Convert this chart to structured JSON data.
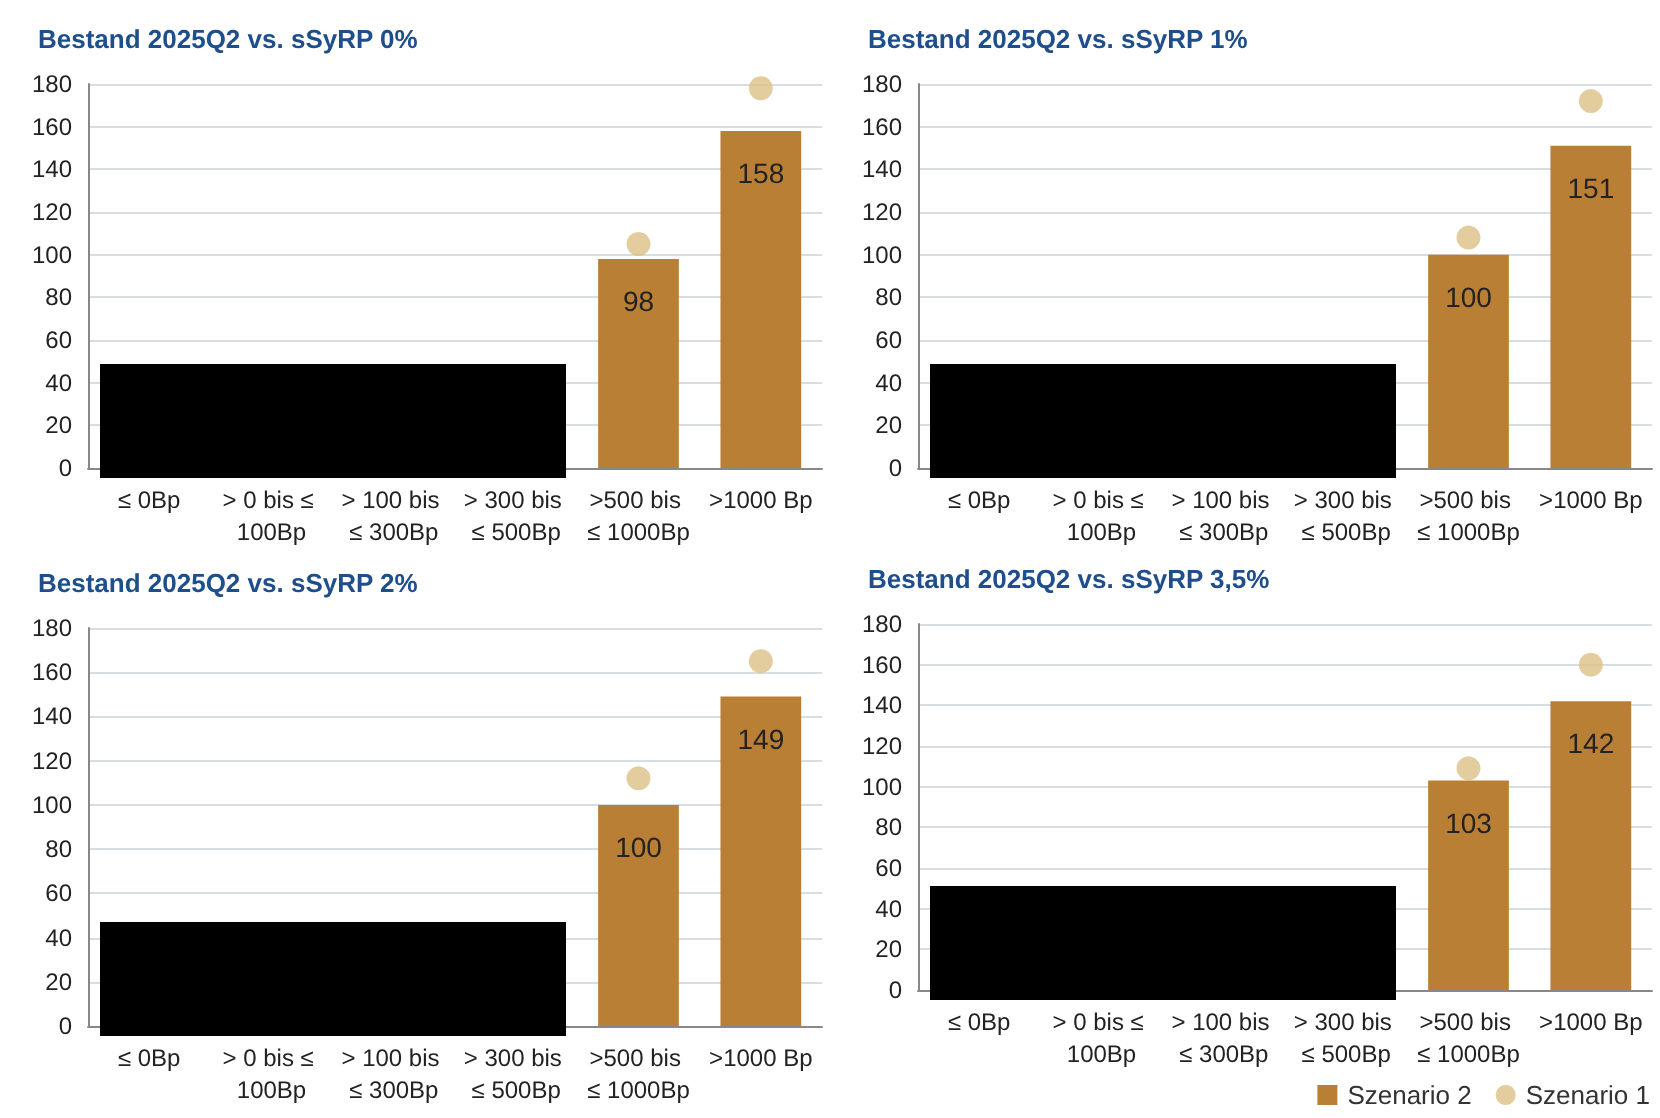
{
  "chart_data": [
    {
      "type": "bar",
      "title": "Bestand 2025Q2 vs. sSyRP 0%",
      "categories": [
        "≤ 0Bp",
        "> 0 bis ≤ 100Bp",
        "> 100 bis ≤ 300Bp",
        "> 300 bis ≤ 500Bp",
        ">500 bis ≤ 1000Bp",
        ">1000 Bp"
      ],
      "ylim": [
        0,
        180
      ],
      "yticks": [
        0,
        20,
        40,
        60,
        80,
        100,
        120,
        140,
        160,
        180
      ],
      "grid": "y",
      "marker": "circle",
      "series": [
        {
          "type": "bar",
          "color": "#b97f35",
          "values": [
            null,
            null,
            null,
            null,
            98,
            158
          ],
          "value_labels": [
            null,
            null,
            null,
            null,
            "98",
            "158"
          ]
        },
        {
          "type": "scatter",
          "color": "#dcc086",
          "values": [
            null,
            null,
            null,
            null,
            105,
            178
          ]
        }
      ]
    },
    {
      "type": "bar",
      "title": "Bestand 2025Q2 vs. sSyRP 1%",
      "categories": [
        "≤ 0Bp",
        "> 0 bis ≤ 100Bp",
        "> 100 bis ≤ 300Bp",
        "> 300 bis ≤ 500Bp",
        ">500 bis ≤ 1000Bp",
        ">1000 Bp"
      ],
      "ylim": [
        0,
        180
      ],
      "yticks": [
        0,
        20,
        40,
        60,
        80,
        100,
        120,
        140,
        160,
        180
      ],
      "grid": "y",
      "marker": "circle",
      "series": [
        {
          "type": "bar",
          "color": "#b97f35",
          "values": [
            null,
            null,
            null,
            null,
            100,
            151
          ],
          "value_labels": [
            null,
            null,
            null,
            null,
            "100",
            "151"
          ]
        },
        {
          "type": "scatter",
          "color": "#dcc086",
          "values": [
            null,
            null,
            null,
            null,
            108,
            172
          ]
        }
      ]
    },
    {
      "type": "bar",
      "title": "Bestand 2025Q2 vs. sSyRP 2%",
      "categories": [
        "≤ 0Bp",
        "> 0 bis ≤ 100Bp",
        "> 100 bis ≤ 300Bp",
        "> 300 bis ≤ 500Bp",
        ">500 bis ≤ 1000Bp",
        ">1000 Bp"
      ],
      "ylim": [
        0,
        180
      ],
      "yticks": [
        0,
        20,
        40,
        60,
        80,
        100,
        120,
        140,
        160,
        180
      ],
      "grid": "y",
      "marker": "circle",
      "series": [
        {
          "type": "bar",
          "color": "#b97f35",
          "values": [
            null,
            null,
            null,
            null,
            100,
            149
          ],
          "value_labels": [
            null,
            null,
            null,
            null,
            "100",
            "149"
          ]
        },
        {
          "type": "scatter",
          "color": "#dcc086",
          "values": [
            null,
            null,
            null,
            null,
            112,
            165
          ]
        }
      ]
    },
    {
      "type": "bar",
      "title": "Bestand 2025Q2 vs. sSyRP 3,5%",
      "categories": [
        "≤ 0Bp",
        "> 0 bis ≤ 100Bp",
        "> 100 bis ≤ 300Bp",
        "> 300 bis ≤ 500Bp",
        ">500 bis ≤ 1000Bp",
        ">1000 Bp"
      ],
      "ylim": [
        0,
        180
      ],
      "yticks": [
        0,
        20,
        40,
        60,
        80,
        100,
        120,
        140,
        160,
        180
      ],
      "grid": "y",
      "marker": "circle",
      "legend": "bottom right",
      "series": [
        {
          "name": "Szenario 2",
          "type": "bar",
          "color": "#b97f35",
          "values": [
            null,
            null,
            null,
            null,
            103,
            142
          ],
          "value_labels": [
            null,
            null,
            null,
            null,
            "103",
            "142"
          ]
        },
        {
          "name": "Szenario 1",
          "type": "scatter",
          "color": "#dcc086",
          "values": [
            null,
            null,
            null,
            null,
            109,
            160
          ]
        }
      ]
    }
  ]
}
